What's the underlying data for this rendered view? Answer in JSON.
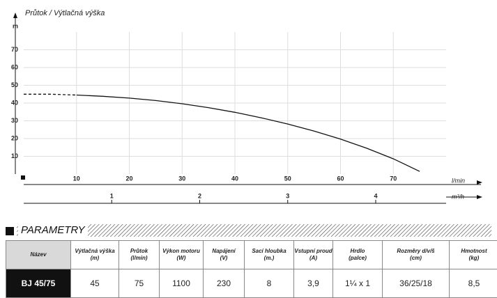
{
  "chart_data": {
    "type": "line",
    "title": "Průtok / Výtlačná výška",
    "y_label": "m",
    "x_label": "l/min",
    "x2_label": "m³/h",
    "xlim": [
      0,
      80
    ],
    "xticks": [
      10,
      20,
      30,
      40,
      50,
      60,
      70
    ],
    "ylim": [
      0,
      80
    ],
    "yticks": [
      10,
      20,
      30,
      40,
      50,
      60,
      70
    ],
    "x2lim": [
      0,
      4.8
    ],
    "x2ticks": [
      1,
      2,
      3,
      4
    ],
    "grid": true,
    "series": [
      {
        "color": "#111111",
        "dashed": true,
        "x": [
          0,
          5,
          10
        ],
        "values": [
          45,
          45,
          44.5
        ]
      },
      {
        "color": "#111111",
        "dashed": false,
        "x": [
          10,
          15,
          20,
          25,
          30,
          35,
          40,
          45,
          50,
          55,
          60,
          65,
          70,
          75
        ],
        "values": [
          44.5,
          43.8,
          42.8,
          41.4,
          39.6,
          37.4,
          34.8,
          31.7,
          28.2,
          24.2,
          19.7,
          14.5,
          8.6,
          1.5
        ]
      }
    ]
  },
  "table": {
    "title": "PARAMETRY",
    "columns": [
      {
        "name": "Název"
      },
      {
        "name": "Výtlačná výška",
        "unit": "(m)"
      },
      {
        "name": "Průtok",
        "unit": "(l/min)"
      },
      {
        "name": "Výkon motoru",
        "unit": "(W)"
      },
      {
        "name": "Napájení",
        "unit": "(V)"
      },
      {
        "name": "Sací hloubka",
        "unit": "(m.)"
      },
      {
        "name": "Vstupní proud",
        "unit": "(A)"
      },
      {
        "name": "Hrdlo",
        "unit": "(palce)"
      },
      {
        "name": "Rozměry d/v/š",
        "unit": "(cm)"
      },
      {
        "name": "Hmotnost",
        "unit": "(kg)"
      }
    ],
    "rows": [
      [
        "BJ 45/75",
        "45",
        "75",
        "1100",
        "230",
        "8",
        "3,9",
        "1¼ x 1",
        "36/25/18",
        "8,5"
      ]
    ]
  }
}
